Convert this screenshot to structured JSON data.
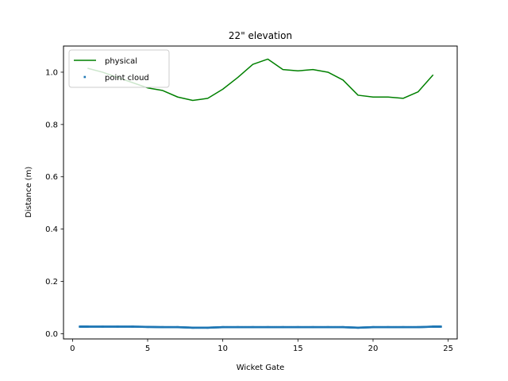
{
  "chart_data": {
    "type": "line",
    "title": "22\" elevation",
    "xlabel": "Wicket Gate",
    "ylabel": "Distance (m)",
    "xlim": [
      -0.6,
      25.6
    ],
    "ylim": [
      -0.02,
      1.1
    ],
    "xticks": [
      0,
      5,
      10,
      15,
      20,
      25
    ],
    "yticks": [
      0.0,
      0.2,
      0.4,
      0.6,
      0.8,
      1.0
    ],
    "xtick_labels": [
      "0",
      "5",
      "10",
      "15",
      "20",
      "25"
    ],
    "ytick_labels": [
      "0.0",
      "0.2",
      "0.4",
      "0.6",
      "0.8",
      "1.0"
    ],
    "legend_position": "top-left",
    "series": [
      {
        "name": "physical",
        "kind": "line",
        "color": "#008000",
        "x": [
          1,
          2,
          3,
          4,
          5,
          6,
          7,
          8,
          9,
          10,
          11,
          12,
          13,
          14,
          15,
          16,
          17,
          18,
          19,
          20,
          21,
          22,
          23,
          24
        ],
        "y": [
          1.015,
          1.0,
          0.98,
          0.96,
          0.94,
          0.93,
          0.905,
          0.892,
          0.9,
          0.935,
          0.98,
          1.03,
          1.05,
          1.01,
          1.005,
          1.01,
          1.0,
          0.97,
          0.912,
          0.905,
          0.905,
          0.9,
          0.925,
          0.99
        ]
      },
      {
        "name": "point cloud",
        "kind": "scatter",
        "color": "#1f77b4",
        "x": [
          0.5,
          1,
          2,
          3,
          4,
          5,
          6,
          7,
          8,
          9,
          10,
          11,
          12,
          13,
          14,
          15,
          16,
          17,
          18,
          19,
          20,
          21,
          22,
          23,
          24,
          24.5
        ],
        "y": [
          0.027,
          0.027,
          0.027,
          0.027,
          0.027,
          0.026,
          0.025,
          0.025,
          0.023,
          0.023,
          0.025,
          0.025,
          0.025,
          0.025,
          0.025,
          0.025,
          0.025,
          0.025,
          0.025,
          0.023,
          0.025,
          0.025,
          0.025,
          0.025,
          0.027,
          0.027
        ]
      }
    ]
  }
}
